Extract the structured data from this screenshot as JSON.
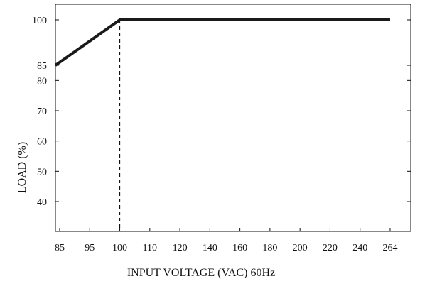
{
  "chart_data": {
    "type": "line",
    "title": "",
    "xlabel": "INPUT VOLTAGE (VAC) 60Hz",
    "ylabel": "LOAD (%)",
    "x_ticks": [
      "85",
      "95",
      "100",
      "110",
      "120",
      "140",
      "160",
      "180",
      "200",
      "220",
      "240",
      "264"
    ],
    "y_ticks": [
      "100",
      "85",
      "80",
      "70",
      "60",
      "50",
      "40"
    ],
    "series": [
      {
        "x": [
          "85",
          "100",
          "264"
        ],
        "y": [
          85,
          100,
          100
        ],
        "color": "#1a1a1a"
      }
    ],
    "reference_line": {
      "x": "100",
      "style": "dashed"
    },
    "grid": false
  }
}
